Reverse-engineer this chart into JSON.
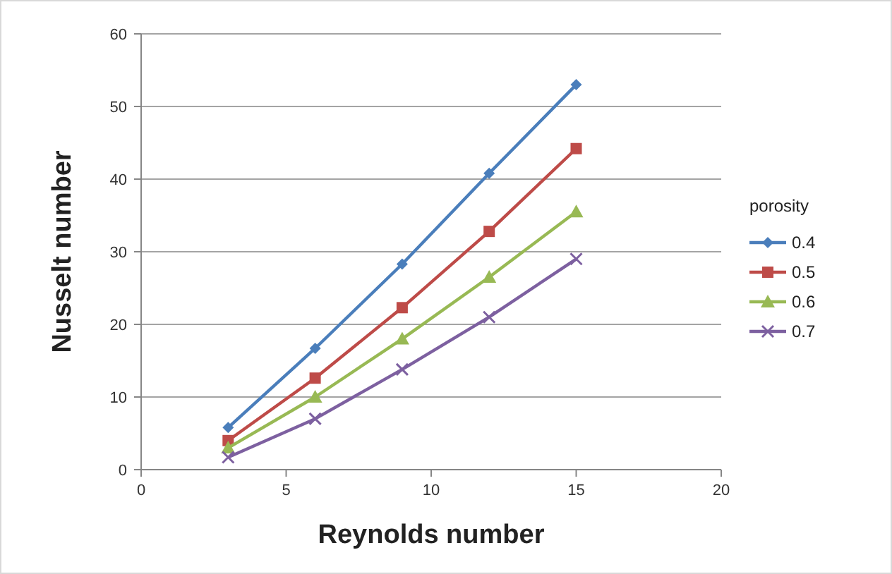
{
  "chart_data": {
    "type": "line",
    "xlabel": "Reynolds number",
    "ylabel": "Nusselt number",
    "legend_title": "porosity",
    "x": [
      3,
      6,
      9,
      12,
      15
    ],
    "series": [
      {
        "name": "0.4",
        "color": "#4a7ebb",
        "marker": "diamond",
        "values": [
          5.8,
          16.7,
          28.3,
          40.8,
          53
        ]
      },
      {
        "name": "0.5",
        "color": "#be4b48",
        "marker": "square",
        "values": [
          4,
          12.6,
          22.3,
          32.8,
          44.2
        ]
      },
      {
        "name": "0.6",
        "color": "#98b954",
        "marker": "triangle",
        "values": [
          3,
          10,
          18,
          26.5,
          35.5
        ]
      },
      {
        "name": "0.7",
        "color": "#7d60a0",
        "marker": "cross",
        "values": [
          1.7,
          7,
          13.8,
          21,
          29
        ]
      }
    ],
    "xlim": [
      0,
      20
    ],
    "xticks": [
      0,
      5,
      10,
      15,
      20
    ],
    "ylim": [
      0,
      60
    ],
    "yticks": [
      0,
      10,
      20,
      30,
      40,
      50,
      60
    ],
    "grid": "y",
    "legend": "right"
  }
}
